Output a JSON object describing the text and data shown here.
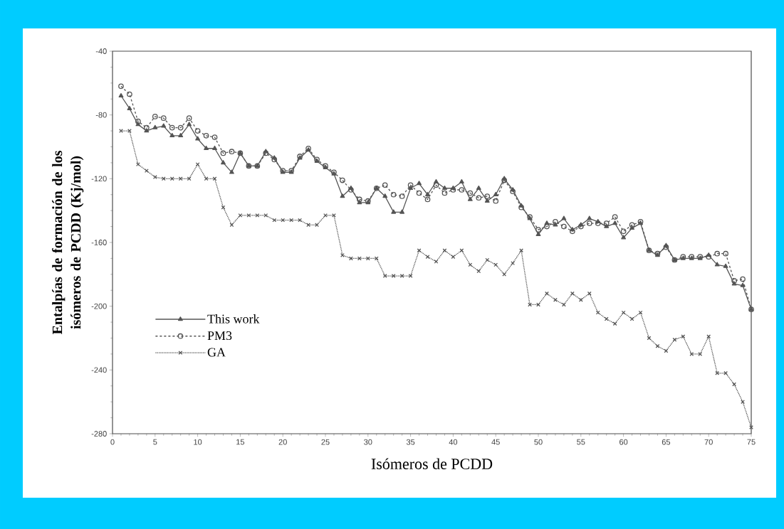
{
  "chart_data": {
    "type": "line",
    "xlabel": "Isómeros de PCDD",
    "ylabel": "Entalpías de formación de los isómeros de PCDD (Kj/mol)",
    "x": [
      1,
      2,
      3,
      4,
      5,
      6,
      7,
      8,
      9,
      10,
      11,
      12,
      13,
      14,
      15,
      16,
      17,
      18,
      19,
      20,
      21,
      22,
      23,
      24,
      25,
      26,
      27,
      28,
      29,
      30,
      31,
      32,
      33,
      34,
      35,
      36,
      37,
      38,
      39,
      40,
      41,
      42,
      43,
      44,
      45,
      46,
      47,
      48,
      49,
      50,
      51,
      52,
      53,
      54,
      55,
      56,
      57,
      58,
      59,
      60,
      61,
      62,
      63,
      64,
      65,
      66,
      67,
      68,
      69,
      70,
      71,
      72,
      73,
      74,
      75
    ],
    "series": [
      {
        "name": "This work",
        "color": "#555555",
        "marker": "triangle",
        "line_style": "solid",
        "values": [
          -68,
          -76,
          -86,
          -90,
          -88,
          -87,
          -93,
          -93,
          -86,
          -95,
          -101,
          -101,
          -110,
          -116,
          -104,
          -112,
          -112,
          -103,
          -107,
          -116,
          -116,
          -107,
          -102,
          -109,
          -113,
          -117,
          -131,
          -126,
          -135,
          -135,
          -126,
          -131,
          -141,
          -141,
          -126,
          -123,
          -130,
          -122,
          -126,
          -126,
          -122,
          -133,
          -126,
          -134,
          -130,
          -120,
          -127,
          -137,
          -145,
          -155,
          -148,
          -149,
          -145,
          -152,
          -149,
          -145,
          -147,
          -150,
          -148,
          -157,
          -151,
          -148,
          -165,
          -168,
          -162,
          -171,
          -170,
          -170,
          -170,
          -168,
          -174,
          -175,
          -186,
          -187,
          -202
        ]
      },
      {
        "name": "PM3",
        "color": "#555555",
        "marker": "circle",
        "line_style": "dashed",
        "values": [
          -62,
          -67,
          -84,
          -88,
          -81,
          -82,
          -88,
          -88,
          -82,
          -90,
          -93,
          -94,
          -104,
          -103,
          -104,
          -112,
          -112,
          -104,
          -108,
          -115,
          -115,
          -106,
          -101,
          -108,
          -112,
          -116,
          -121,
          -127,
          -133,
          -134,
          -126,
          -124,
          -130,
          -131,
          -124,
          -129,
          -133,
          -124,
          -129,
          -127,
          -127,
          -129,
          -132,
          -131,
          -134,
          -121,
          -128,
          -138,
          -144,
          -152,
          -150,
          -147,
          -150,
          -153,
          -150,
          -148,
          -148,
          -148,
          -144,
          -153,
          -149,
          -147,
          -165,
          -167,
          -163,
          -171,
          -169,
          -169,
          -169,
          -169,
          -167,
          -167,
          -184,
          -183,
          -202
        ]
      },
      {
        "name": "GA",
        "color": "#555555",
        "marker": "cross",
        "line_style": "dotted",
        "values": [
          -90,
          -90,
          -111,
          -115,
          -119,
          -120,
          -120,
          -120,
          -120,
          -111,
          -120,
          -120,
          -138,
          -149,
          -143,
          -143,
          -143,
          -143,
          -146,
          -146,
          -146,
          -146,
          -149,
          -149,
          -143,
          -143,
          -168,
          -170,
          -170,
          -170,
          -170,
          -181,
          -181,
          -181,
          -181,
          -165,
          -169,
          -172,
          -165,
          -169,
          -165,
          -174,
          -178,
          -171,
          -174,
          -180,
          -173,
          -165,
          -199,
          -199,
          -192,
          -196,
          -199,
          -192,
          -196,
          -192,
          -204,
          -208,
          -211,
          -204,
          -208,
          -204,
          -220,
          -225,
          -228,
          -221,
          -219,
          -230,
          -230,
          -219,
          -242,
          -242,
          -249,
          -260,
          -276
        ]
      }
    ],
    "xlim": [
      0,
      75
    ],
    "xticks": [
      0,
      5,
      10,
      15,
      20,
      25,
      30,
      35,
      40,
      45,
      50,
      55,
      60,
      65,
      70,
      75
    ],
    "ylim": [
      -280,
      -40
    ],
    "yticks": [
      -40,
      -80,
      -120,
      -160,
      -200,
      -240,
      -280
    ],
    "grid": false,
    "legend": "bottom left"
  }
}
